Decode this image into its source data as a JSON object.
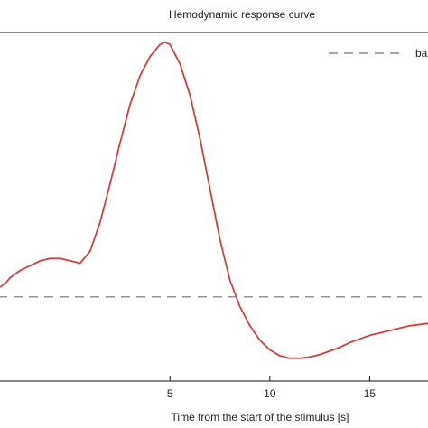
{
  "chart_data": {
    "type": "line",
    "title": "Hemodynamic response curve",
    "xlabel": "Time from the start of the stimulus [s]",
    "xlim": [
      -3.6,
      18.1
    ],
    "ylim": [
      -0.35,
      1.1
    ],
    "x_ticks": [
      5,
      10,
      15
    ],
    "grid": false,
    "legend_position": "top-right",
    "legend_visible_text": "ba",
    "series": [
      {
        "style": "solid",
        "color": "#d04040",
        "x": [
          -3.5,
          -3.2,
          -3.0,
          -2.5,
          -2.0,
          -1.5,
          -1.0,
          -0.5,
          0.0,
          0.5,
          1.0,
          1.5,
          2.0,
          2.5,
          3.0,
          3.5,
          4.0,
          4.5,
          4.75,
          5.0,
          5.5,
          6.0,
          6.5,
          7.0,
          7.5,
          8.0,
          8.5,
          9.0,
          9.5,
          10.0,
          10.5,
          11.0,
          11.5,
          12.0,
          12.5,
          13.0,
          13.5,
          14.0,
          14.5,
          15.0,
          15.5,
          16.0,
          16.5,
          17.0,
          17.5,
          18.0
        ],
        "y": [
          0.04,
          0.06,
          0.08,
          0.11,
          0.13,
          0.15,
          0.16,
          0.16,
          0.15,
          0.14,
          0.19,
          0.31,
          0.47,
          0.64,
          0.8,
          0.92,
          1.0,
          1.05,
          1.06,
          1.05,
          0.97,
          0.84,
          0.66,
          0.45,
          0.24,
          0.07,
          -0.04,
          -0.12,
          -0.18,
          -0.22,
          -0.245,
          -0.255,
          -0.255,
          -0.25,
          -0.24,
          -0.225,
          -0.21,
          -0.19,
          -0.175,
          -0.16,
          -0.15,
          -0.14,
          -0.13,
          -0.12,
          -0.115,
          -0.11
        ]
      },
      {
        "style": "dashed",
        "color": "#707070",
        "x": [
          -3.6,
          18.1
        ],
        "y": [
          0.0,
          0.0
        ]
      }
    ]
  }
}
